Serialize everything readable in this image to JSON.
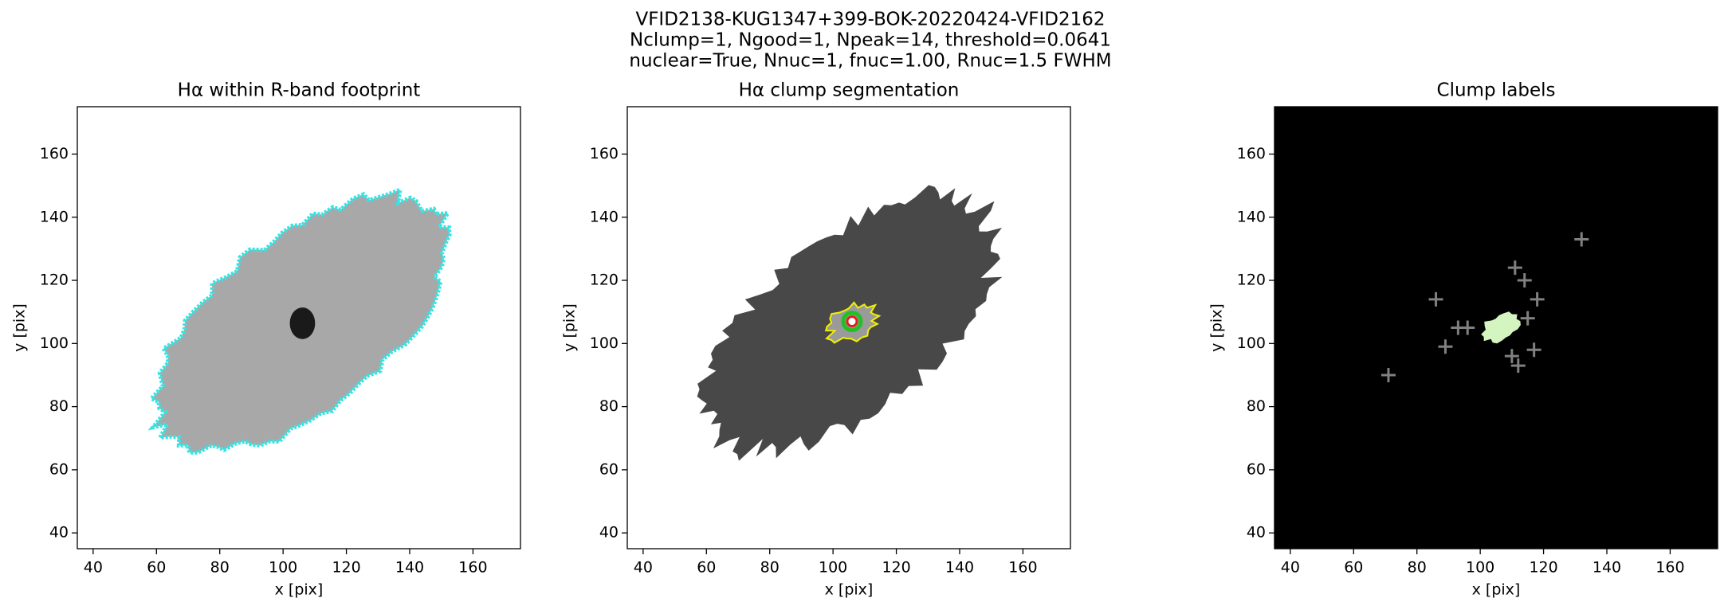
{
  "title": [
    "VFID2138-KUG1347+399-BOK-20220424-VFID2162",
    "Nclump=1, Ngood=1, Npeak=14, threshold=0.0641",
    "nuclear=True, Nnuc=1, fnuc=1.00, Rnuc=1.5 FWHM"
  ],
  "chart_data": [
    {
      "type": "image",
      "title": "Hα within R-band footprint",
      "xlabel": "x [pix]",
      "ylabel": "y [pix]",
      "xlim": [
        35,
        175
      ],
      "ylim": [
        35,
        175
      ],
      "xticks": [
        40,
        60,
        80,
        100,
        120,
        140,
        160
      ],
      "yticks": [
        40,
        60,
        80,
        100,
        120,
        140,
        160
      ],
      "background": "#ffffff"
    },
    {
      "type": "image",
      "title": "Hα clump segmentation",
      "xlabel": "x [pix]",
      "ylabel": "y [pix]",
      "xlim": [
        35,
        175
      ],
      "ylim": [
        35,
        175
      ],
      "xticks": [
        40,
        60,
        80,
        100,
        120,
        140,
        160
      ],
      "yticks": [
        40,
        60,
        80,
        100,
        120,
        140,
        160
      ],
      "background": "#ffffff",
      "points": {
        "x": [
          106
        ],
        "y": [
          107
        ],
        "color": "#22c022"
      }
    },
    {
      "type": "image",
      "title": "Clump labels",
      "xlabel": "x [pix]",
      "ylabel": "y [pix]",
      "xlim": [
        35,
        175
      ],
      "ylim": [
        35,
        175
      ],
      "xticks": [
        40,
        60,
        80,
        100,
        120,
        140,
        160
      ],
      "yticks": [
        40,
        60,
        80,
        100,
        120,
        140,
        160
      ],
      "background": "#000000",
      "points": {
        "x": [
          71,
          86,
          89,
          93,
          96,
          111,
          114,
          118,
          115,
          110,
          112,
          117,
          132
        ],
        "y": [
          90,
          114,
          99,
          105,
          105,
          124,
          120,
          114,
          108,
          96,
          93,
          98,
          133
        ],
        "color": "#808080"
      }
    }
  ]
}
